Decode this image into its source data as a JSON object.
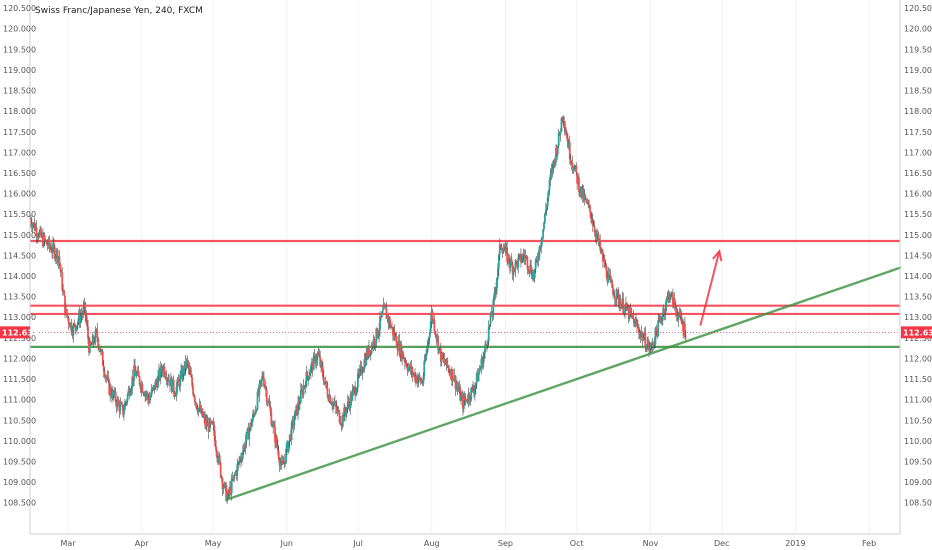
{
  "chart_data": {
    "type": "candlestick",
    "title": "Swiss Franc/Japanese Yen, 240, FXCM",
    "ylim": [
      108.25,
      120.6
    ],
    "y_ticks": [
      120.5,
      120.0,
      119.5,
      119.0,
      118.5,
      118.0,
      117.5,
      117.0,
      116.5,
      116.0,
      115.5,
      115.0,
      114.5,
      114.0,
      113.5,
      113.0,
      112.5,
      112.0,
      111.5,
      111.0,
      110.5,
      110.0,
      109.5,
      109.0,
      108.5
    ],
    "y_tick_labels": [
      "120.500",
      "120.000",
      "119.500",
      "119.000",
      "118.500",
      "118.000",
      "117.500",
      "117.000",
      "116.500",
      "116.000",
      "115.500",
      "115.000",
      "114.500",
      "114.000",
      "113.500",
      "113.000",
      "112.500",
      "112.000",
      "111.500",
      "111.000",
      "110.500",
      "110.000",
      "109.500",
      "109.000",
      "108.500"
    ],
    "x_range": [
      "2018-02-13",
      "2019-02-14"
    ],
    "x_ticks": [
      {
        "date": "2018-03-01",
        "label": "Mar"
      },
      {
        "date": "2018-04-01",
        "label": "Apr"
      },
      {
        "date": "2018-05-01",
        "label": "May"
      },
      {
        "date": "2018-06-01",
        "label": "Jun"
      },
      {
        "date": "2018-07-01",
        "label": "Jul"
      },
      {
        "date": "2018-08-01",
        "label": "Aug"
      },
      {
        "date": "2018-09-01",
        "label": "Sep"
      },
      {
        "date": "2018-10-01",
        "label": "Oct"
      },
      {
        "date": "2018-11-01",
        "label": "Nov"
      },
      {
        "date": "2018-12-01",
        "label": "Dec"
      },
      {
        "date": "2019-01-01",
        "label": "2019"
      },
      {
        "date": "2019-02-01",
        "label": "Feb"
      }
    ],
    "price_anchors": [
      {
        "date": "2018-02-13",
        "value": 115.4
      },
      {
        "date": "2018-02-18",
        "value": 114.9
      },
      {
        "date": "2018-02-25",
        "value": 114.5
      },
      {
        "date": "2018-02-28",
        "value": 113.1
      },
      {
        "date": "2018-03-03",
        "value": 112.7
      },
      {
        "date": "2018-03-08",
        "value": 113.2
      },
      {
        "date": "2018-03-10",
        "value": 112.2
      },
      {
        "date": "2018-03-13",
        "value": 112.6
      },
      {
        "date": "2018-03-18",
        "value": 111.3
      },
      {
        "date": "2018-03-24",
        "value": 110.7
      },
      {
        "date": "2018-03-29",
        "value": 111.7
      },
      {
        "date": "2018-04-04",
        "value": 111.0
      },
      {
        "date": "2018-04-10",
        "value": 111.8
      },
      {
        "date": "2018-04-15",
        "value": 111.2
      },
      {
        "date": "2018-04-20",
        "value": 111.9
      },
      {
        "date": "2018-04-24",
        "value": 110.9
      },
      {
        "date": "2018-04-28",
        "value": 110.4
      },
      {
        "date": "2018-05-01",
        "value": 110.3
      },
      {
        "date": "2018-05-05",
        "value": 109.0
      },
      {
        "date": "2018-05-07",
        "value": 108.6
      },
      {
        "date": "2018-05-12",
        "value": 109.5
      },
      {
        "date": "2018-05-18",
        "value": 110.6
      },
      {
        "date": "2018-05-22",
        "value": 111.6
      },
      {
        "date": "2018-05-26",
        "value": 110.4
      },
      {
        "date": "2018-05-30",
        "value": 109.3
      },
      {
        "date": "2018-06-04",
        "value": 110.5
      },
      {
        "date": "2018-06-09",
        "value": 111.5
      },
      {
        "date": "2018-06-14",
        "value": 112.1
      },
      {
        "date": "2018-06-18",
        "value": 111.2
      },
      {
        "date": "2018-06-24",
        "value": 110.5
      },
      {
        "date": "2018-06-30",
        "value": 111.3
      },
      {
        "date": "2018-07-04",
        "value": 112.0
      },
      {
        "date": "2018-07-09",
        "value": 112.6
      },
      {
        "date": "2018-07-12",
        "value": 113.2
      },
      {
        "date": "2018-07-18",
        "value": 112.3
      },
      {
        "date": "2018-07-23",
        "value": 111.7
      },
      {
        "date": "2018-07-28",
        "value": 111.4
      },
      {
        "date": "2018-08-01",
        "value": 113.1
      },
      {
        "date": "2018-08-05",
        "value": 112.0
      },
      {
        "date": "2018-08-10",
        "value": 111.6
      },
      {
        "date": "2018-08-14",
        "value": 110.9
      },
      {
        "date": "2018-08-19",
        "value": 111.3
      },
      {
        "date": "2018-08-23",
        "value": 112.1
      },
      {
        "date": "2018-08-27",
        "value": 113.3
      },
      {
        "date": "2018-08-30",
        "value": 114.8
      },
      {
        "date": "2018-09-04",
        "value": 114.2
      },
      {
        "date": "2018-09-09",
        "value": 114.5
      },
      {
        "date": "2018-09-13",
        "value": 114.0
      },
      {
        "date": "2018-09-17",
        "value": 115.2
      },
      {
        "date": "2018-09-20",
        "value": 116.4
      },
      {
        "date": "2018-09-24",
        "value": 117.5
      },
      {
        "date": "2018-09-25",
        "value": 118.0
      },
      {
        "date": "2018-09-28",
        "value": 117.0
      },
      {
        "date": "2018-10-03",
        "value": 116.0
      },
      {
        "date": "2018-10-07",
        "value": 115.5
      },
      {
        "date": "2018-10-11",
        "value": 114.6
      },
      {
        "date": "2018-10-15",
        "value": 113.8
      },
      {
        "date": "2018-10-19",
        "value": 113.4
      },
      {
        "date": "2018-10-24",
        "value": 113.0
      },
      {
        "date": "2018-10-28",
        "value": 112.6
      },
      {
        "date": "2018-11-01",
        "value": 112.2
      },
      {
        "date": "2018-11-05",
        "value": 112.9
      },
      {
        "date": "2018-11-09",
        "value": 113.6
      },
      {
        "date": "2018-11-13",
        "value": 113.0
      },
      {
        "date": "2018-11-16",
        "value": 112.63
      }
    ],
    "horizontal_levels": [
      {
        "value": 114.85,
        "color": "#f23645"
      },
      {
        "value": 113.28,
        "color": "#f23645"
      },
      {
        "value": 113.08,
        "color": "#f23645"
      },
      {
        "value": 112.28,
        "color": "#388e3c"
      }
    ],
    "trendline": {
      "from": {
        "date": "2018-05-07",
        "value": 108.58
      },
      "to": {
        "date": "2019-02-14",
        "value": 114.2
      },
      "color": "#388e3c"
    },
    "arrow": {
      "from": {
        "date": "2018-11-22",
        "value": 112.8
      },
      "to": {
        "date": "2018-11-30",
        "value": 114.6
      },
      "color": "#f23645"
    },
    "current_price": {
      "value": 112.633,
      "label": "112.633",
      "color": "#f23645"
    },
    "colors": {
      "up": "#26a69a",
      "down": "#ef5350",
      "wick": "#444444",
      "grid": "#e6e6e6"
    }
  }
}
